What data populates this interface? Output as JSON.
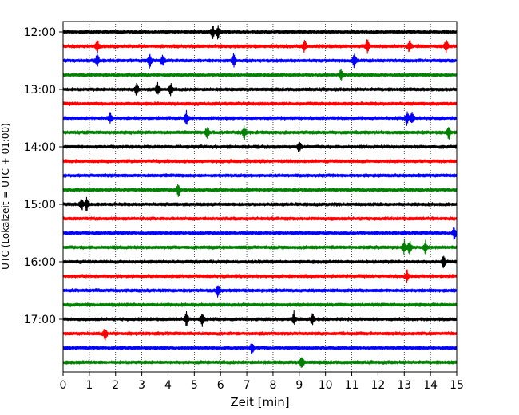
{
  "chart_data": {
    "type": "line",
    "title": "",
    "xlabel": "Zeit  [min]",
    "ylabel": "UTC (Lokalzeit = UTC + 01:00)",
    "xlim": [
      0,
      15
    ],
    "x_ticks": [
      "0",
      "1",
      "2",
      "3",
      "4",
      "5",
      "6",
      "7",
      "8",
      "9",
      "10",
      "11",
      "12",
      "13",
      "14",
      "15"
    ],
    "y_tick_labels": [
      "12:00",
      "13:00",
      "14:00",
      "15:00",
      "16:00",
      "17:00"
    ],
    "grid_x": true,
    "line_colors": [
      "#000000",
      "#ff0000",
      "#0000ff",
      "#008000"
    ],
    "traces": [
      {
        "start": "12:00",
        "events": [
          5.9,
          5.7
        ]
      },
      {
        "start": "12:15",
        "events": [
          1.3,
          9.2,
          11.6,
          13.2,
          14.6
        ]
      },
      {
        "start": "12:30",
        "events": [
          1.3,
          3.3,
          3.8,
          6.5,
          11.1
        ]
      },
      {
        "start": "12:45",
        "events": [
          10.6
        ]
      },
      {
        "start": "13:00",
        "events": [
          3.6,
          4.1,
          2.8
        ]
      },
      {
        "start": "13:15",
        "events": []
      },
      {
        "start": "13:30",
        "events": [
          1.8,
          4.7,
          13.3,
          13.1
        ]
      },
      {
        "start": "13:45",
        "events": [
          5.5,
          6.9,
          14.7
        ]
      },
      {
        "start": "14:00",
        "events": [
          9.0
        ]
      },
      {
        "start": "14:15",
        "events": []
      },
      {
        "start": "14:30",
        "events": []
      },
      {
        "start": "14:45",
        "events": [
          4.4
        ]
      },
      {
        "start": "15:00",
        "events": [
          0.9,
          0.7
        ]
      },
      {
        "start": "15:15",
        "events": []
      },
      {
        "start": "15:30",
        "events": [
          14.9
        ]
      },
      {
        "start": "15:45",
        "events": [
          13.2,
          13.8,
          13.0
        ]
      },
      {
        "start": "16:00",
        "events": [
          14.5
        ]
      },
      {
        "start": "16:15",
        "events": [
          13.1
        ]
      },
      {
        "start": "16:30",
        "events": [
          5.9
        ]
      },
      {
        "start": "16:45",
        "events": []
      },
      {
        "start": "17:00",
        "events": [
          4.7,
          5.3,
          9.5,
          8.8
        ]
      },
      {
        "start": "17:15",
        "events": [
          1.6
        ]
      },
      {
        "start": "17:30",
        "events": [
          7.2
        ]
      },
      {
        "start": "17:45",
        "events": [
          9.1
        ]
      }
    ]
  }
}
